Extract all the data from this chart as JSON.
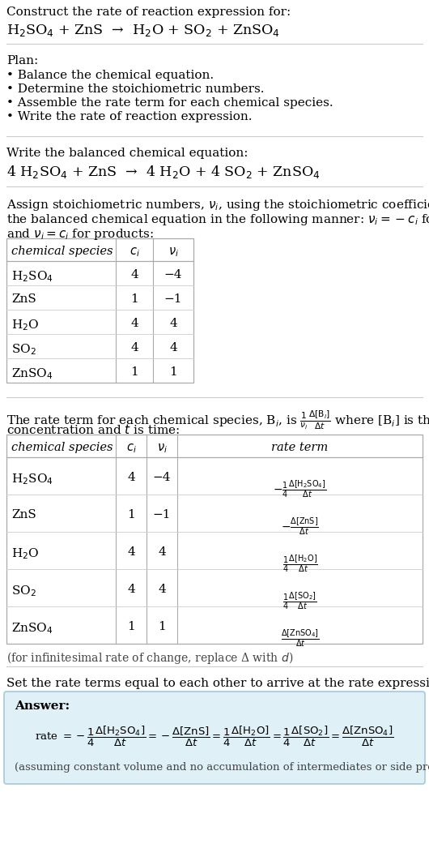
{
  "bg_color": "#ffffff",
  "title_line1": "Construct the rate of reaction expression for:",
  "title_eq": "H$_2$SO$_4$ + ZnS  →  H$_2$O + SO$_2$ + ZnSO$_4$",
  "plan_header": "Plan:",
  "plan_items": [
    "• Balance the chemical equation.",
    "• Determine the stoichiometric numbers.",
    "• Assemble the rate term for each chemical species.",
    "• Write the rate of reaction expression."
  ],
  "balanced_header": "Write the balanced chemical equation:",
  "balanced_eq": "4 H$_2$SO$_4$ + ZnS  →  4 H$_2$O + 4 SO$_2$ + ZnSO$_4$",
  "stoich_header1": "Assign stoichiometric numbers, $\\nu_i$, using the stoichiometric coefficients, $c_i$, from",
  "stoich_header2": "the balanced chemical equation in the following manner: $\\nu_i = -c_i$ for reactants",
  "stoich_header3": "and $\\nu_i = c_i$ for products:",
  "table1_cols": [
    "chemical species",
    "$c_i$",
    "$\\nu_i$"
  ],
  "table1_rows": [
    [
      "H$_2$SO$_4$",
      "4",
      "−4"
    ],
    [
      "ZnS",
      "1",
      "−1"
    ],
    [
      "H$_2$O",
      "4",
      "4"
    ],
    [
      "SO$_2$",
      "4",
      "4"
    ],
    [
      "ZnSO$_4$",
      "1",
      "1"
    ]
  ],
  "rate_header1": "The rate term for each chemical species, B$_i$, is $\\frac{1}{\\nu_i}\\frac{\\Delta[\\mathrm{B}_i]}{\\Delta t}$ where [B$_i$] is the amount",
  "rate_header2": "concentration and $t$ is time:",
  "table2_cols": [
    "chemical species",
    "$c_i$",
    "$\\nu_i$",
    "rate term"
  ],
  "table2_rows": [
    [
      "H$_2$SO$_4$",
      "4",
      "−4",
      "$-\\frac{1}{4}\\frac{\\Delta[\\mathrm{H_2SO_4}]}{\\Delta t}$"
    ],
    [
      "ZnS",
      "1",
      "−1",
      "$-\\frac{\\Delta[\\mathrm{ZnS}]}{\\Delta t}$"
    ],
    [
      "H$_2$O",
      "4",
      "4",
      "$\\frac{1}{4}\\frac{\\Delta[\\mathrm{H_2O}]}{\\Delta t}$"
    ],
    [
      "SO$_2$",
      "4",
      "4",
      "$\\frac{1}{4}\\frac{\\Delta[\\mathrm{SO_2}]}{\\Delta t}$"
    ],
    [
      "ZnSO$_4$",
      "1",
      "1",
      "$\\frac{\\Delta[\\mathrm{ZnSO_4}]}{\\Delta t}$"
    ]
  ],
  "infinitesimal_note": "(for infinitesimal rate of change, replace Δ with $d$)",
  "set_rate_header": "Set the rate terms equal to each other to arrive at the rate expression:",
  "answer_box_color": "#dff0f7",
  "answer_border_color": "#a8c8dc",
  "answer_label": "Answer:",
  "answer_note": "(assuming constant volume and no accumulation of intermediates or side products)"
}
